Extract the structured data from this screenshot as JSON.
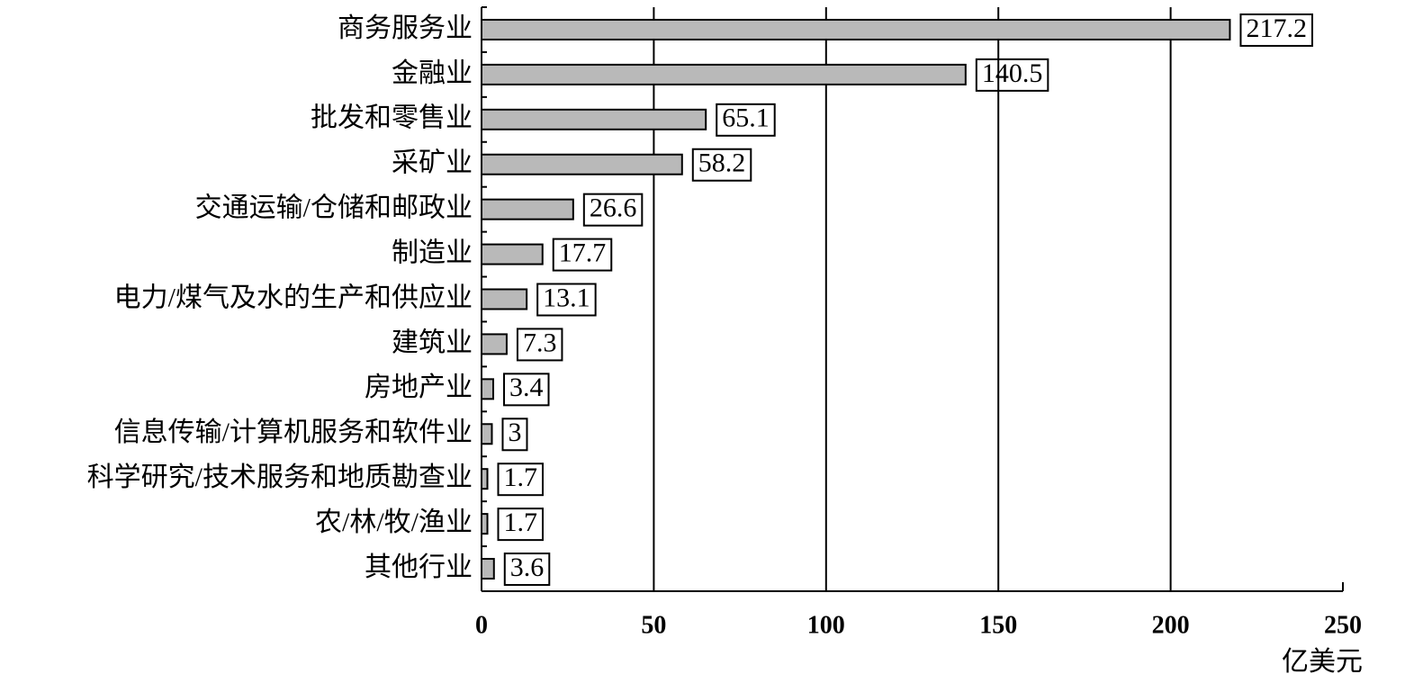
{
  "chart_data": {
    "type": "bar",
    "orientation": "horizontal",
    "categories": [
      "商务服务业",
      "金融业",
      "批发和零售业",
      "采矿业",
      "交通运输/仓储和邮政业",
      "制造业",
      "电力/煤气及水的生产和供应业",
      "建筑业",
      "房地产业",
      "信息传输/计算机服务和软件业",
      "科学研究/技术服务和地质勘查业",
      "农/林/牧/渔业",
      "其他行业"
    ],
    "values": [
      217.2,
      140.5,
      65.1,
      58.2,
      26.6,
      17.7,
      13.1,
      7.3,
      3.4,
      3,
      1.7,
      1.7,
      3.6
    ],
    "color": "#b9b9b9",
    "xlim": [
      0,
      250
    ],
    "xticks": [
      0,
      50,
      100,
      150,
      200,
      250
    ],
    "x_label": "亿美元",
    "grid": true
  }
}
